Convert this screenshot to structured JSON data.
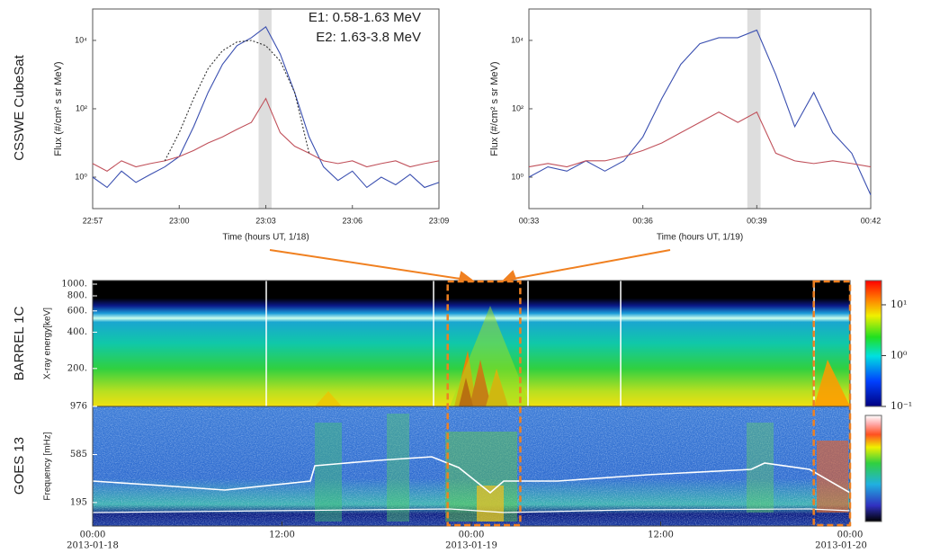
{
  "panel_labels": [
    "CSSWE CubeSat",
    "BARREL 1C",
    "GOES 13"
  ],
  "chart_data": [
    {
      "type": "line",
      "xlabel": "Time (hours UT, 1/18)",
      "ylabel": "Flux (#/cm² s sr MeV)",
      "ylog": true,
      "ylim": [
        0.12,
        83000
      ],
      "yticks": [
        {
          "value": 1,
          "label": "10⁰"
        },
        {
          "value": 100,
          "label": "10²"
        },
        {
          "value": 10000,
          "label": "10⁴"
        }
      ],
      "xlim": [
        1377,
        1389
      ],
      "xticks": [
        {
          "value": 1377,
          "label": "22:57"
        },
        {
          "value": 1380,
          "label": "23:00"
        },
        {
          "value": 1383,
          "label": "23:03"
        },
        {
          "value": 1386,
          "label": "23:06"
        },
        {
          "value": 1389,
          "label": "23:09"
        }
      ],
      "shade": [
        1382.75,
        1383.2
      ],
      "x": [
        1377,
        1377.5,
        1378,
        1378.5,
        1379,
        1379.5,
        1380,
        1380.5,
        1381,
        1381.5,
        1382,
        1382.5,
        1383,
        1383.5,
        1384,
        1384.5,
        1385,
        1385.5,
        1386,
        1386.5,
        1387,
        1387.5,
        1388,
        1388.5,
        1389
      ],
      "series": [
        {
          "name": "E1: 0.58-1.63 MeV",
          "color": "#3a4fb0",
          "values": [
            1,
            0.5,
            1.5,
            0.7,
            1.2,
            2,
            4,
            30,
            300,
            2000,
            7000,
            12000,
            25000,
            4000,
            300,
            15,
            2,
            0.8,
            1.5,
            0.5,
            1,
            0.6,
            1.2,
            0.5,
            0.7
          ]
        },
        {
          "name": "E2: 1.63-3.8 MeV",
          "color": "#c0505a",
          "values": [
            2.5,
            1.5,
            3,
            2,
            2.5,
            3,
            4,
            6,
            10,
            15,
            25,
            40,
            200,
            20,
            8,
            5,
            3,
            2.5,
            3,
            2,
            2.5,
            3,
            2,
            2.5,
            3
          ]
        },
        {
          "color": "#333",
          "style": "dotted",
          "x": [
            1379.5,
            1380,
            1380.5,
            1381,
            1381.5,
            1382,
            1382.5,
            1383,
            1383.5,
            1384,
            1384.5
          ],
          "values": [
            3,
            20,
            200,
            1500,
            5000,
            9000,
            10000,
            7000,
            2500,
            300,
            5
          ]
        }
      ]
    },
    {
      "type": "line",
      "xlabel": "Time (hours UT, 1/19)",
      "ylabel": "Flux (#/cm² s sr MeV)",
      "ylog": true,
      "ylim": [
        0.12,
        83000
      ],
      "yticks": [
        {
          "value": 1,
          "label": "10⁰"
        },
        {
          "value": 100,
          "label": "10²"
        },
        {
          "value": 10000,
          "label": "10⁴"
        }
      ],
      "xlim": [
        33,
        42
      ],
      "xticks": [
        {
          "value": 33,
          "label": "00:33"
        },
        {
          "value": 36,
          "label": "00:36"
        },
        {
          "value": 39,
          "label": "00:39"
        },
        {
          "value": 42,
          "label": "00:42"
        }
      ],
      "shade": [
        38.75,
        39.1
      ],
      "x": [
        33,
        33.5,
        34,
        34.5,
        35,
        35.5,
        36,
        36.5,
        37,
        37.5,
        38,
        38.5,
        39,
        39.5,
        40,
        40.5,
        41,
        41.5,
        42
      ],
      "series": [
        {
          "color": "#3a4fb0",
          "values": [
            1,
            2,
            1.5,
            3,
            1.5,
            3,
            15,
            200,
            2000,
            8000,
            12000,
            12000,
            20000,
            1000,
            30,
            300,
            20,
            5,
            0.3
          ]
        },
        {
          "color": "#c0505a",
          "values": [
            2,
            2.5,
            2,
            3,
            3,
            4,
            6,
            10,
            20,
            40,
            80,
            40,
            80,
            5,
            3,
            2.5,
            3,
            2.5,
            2
          ]
        }
      ]
    }
  ],
  "spectrograms": {
    "xlim": [
      0,
      48
    ],
    "xticks": [
      {
        "value": 0,
        "label": "00:00"
      },
      {
        "value": 12,
        "label": "12:00"
      },
      {
        "value": 24,
        "label": "00:00"
      },
      {
        "value": 36,
        "label": "12:00"
      },
      {
        "value": 48,
        "label": "00:00"
      }
    ],
    "dates": [
      {
        "value": 0,
        "label": "2013-01-18"
      },
      {
        "value": 24,
        "label": "2013-01-19"
      },
      {
        "value": 48,
        "label": "2013-01-20"
      }
    ],
    "boxes": [
      [
        22.5,
        27.1
      ],
      [
        45.7,
        48
      ]
    ],
    "barrel": {
      "ylabel": "X-ray energy[keV]",
      "ylog": true,
      "ylim": [
        97,
        1071
      ],
      "yticks": [
        {
          "value": 1000,
          "label": "1000."
        },
        {
          "value": 800,
          "label": "800."
        },
        {
          "value": 600,
          "label": "600."
        },
        {
          "value": 400,
          "label": "400."
        },
        {
          "value": 200,
          "label": "200."
        }
      ],
      "colorbar": {
        "lim": [
          0.1,
          30
        ],
        "ticks": [
          {
            "value": 10,
            "label": "10¹"
          },
          {
            "value": 1,
            "label": "10⁰"
          },
          {
            "value": 0.1,
            "label": "10⁻¹"
          }
        ]
      }
    },
    "goes": {
      "ylabel": "Frequency [mHz]",
      "ylim": [
        4,
        976
      ],
      "yticks": [
        976,
        585,
        195
      ]
    }
  }
}
